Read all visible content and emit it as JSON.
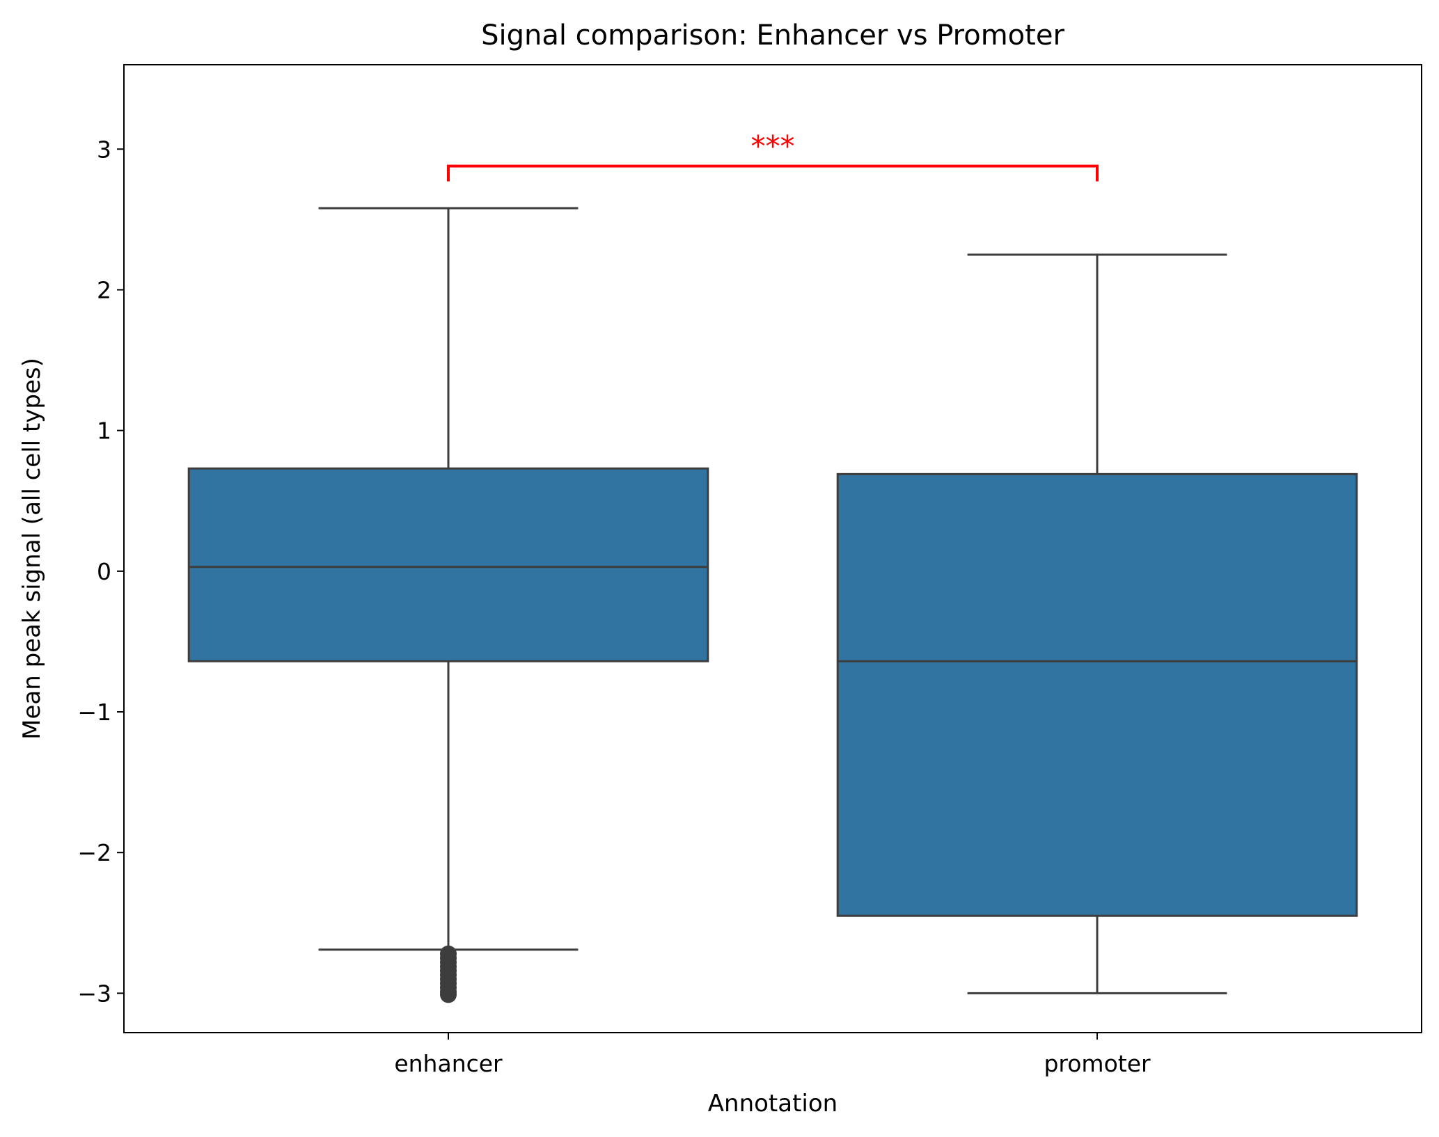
{
  "chart_data": {
    "type": "box",
    "title": "Signal comparison: Enhancer vs Promoter",
    "xlabel": "Annotation",
    "ylabel": "Mean peak signal (all cell types)",
    "ylim": [
      -3.28,
      3.6
    ],
    "yticks": [
      -3,
      -2,
      -1,
      0,
      1,
      2,
      3
    ],
    "ytick_labels": [
      "−3",
      "−2",
      "−1",
      "0",
      "1",
      "2",
      "3"
    ],
    "categories": [
      "enhancer",
      "promoter"
    ],
    "grid": false,
    "colors": {
      "box": "#3274a1",
      "line": "#3d3d3d",
      "significance": "#ff0000"
    },
    "boxes": [
      {
        "category": "enhancer",
        "whisker_low": -2.69,
        "q1": -0.64,
        "median": 0.03,
        "q3": 0.73,
        "whisker_high": 2.58,
        "outliers": [
          -2.72,
          -2.75,
          -2.78,
          -2.81,
          -2.84,
          -2.87,
          -2.9,
          -2.93,
          -2.96,
          -2.99,
          -3.01
        ]
      },
      {
        "category": "promoter",
        "whisker_low": -3.0,
        "q1": -2.45,
        "median": -0.64,
        "q3": 0.69,
        "whisker_high": 2.25,
        "outliers": []
      }
    ],
    "significance": {
      "between": [
        "enhancer",
        "promoter"
      ],
      "y": 2.88,
      "label": "***"
    }
  }
}
